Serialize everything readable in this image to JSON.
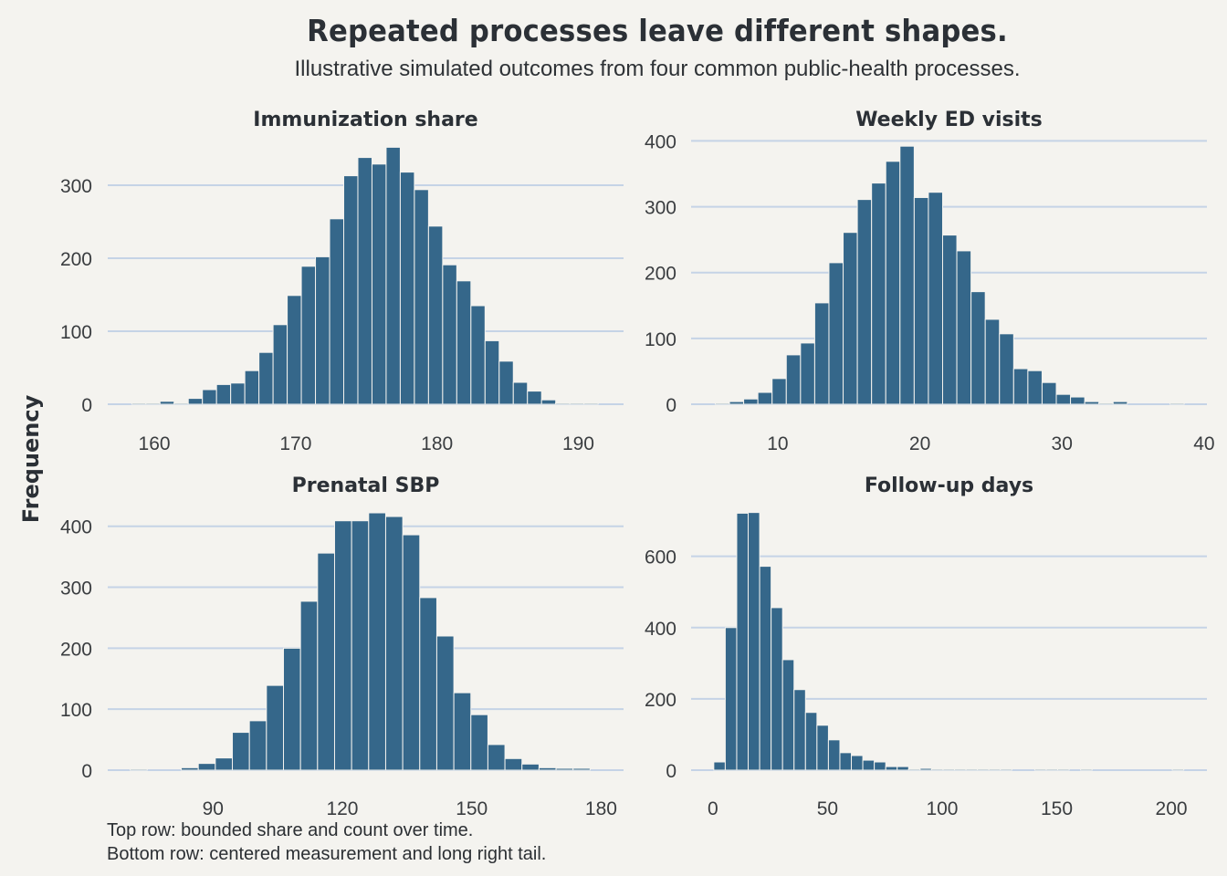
{
  "title": "Repeated processes leave different shapes.",
  "subtitle": "Illustrative simulated outcomes from four common public-health processes.",
  "ylabel": "Frequency",
  "notes": [
    "Top row: bounded share and count over time.",
    "Bottom row: centered measurement and long right tail."
  ],
  "colors": {
    "background": "#f4f3ef",
    "bar": "#35678a",
    "grid": "#c5d3e6",
    "text": "#2b3036"
  },
  "chart_data": [
    {
      "type": "bar",
      "title": "Immunization share",
      "xlabel": "",
      "ylabel": "Frequency",
      "bin_start": 158.4,
      "bin_width": 1.0,
      "values": [
        1,
        1,
        4,
        1,
        8,
        20,
        27,
        29,
        46,
        71,
        109,
        149,
        189,
        202,
        254,
        313,
        338,
        329,
        352,
        318,
        294,
        244,
        191,
        169,
        135,
        87,
        59,
        30,
        18,
        6,
        1,
        1,
        1
      ],
      "xlim": [
        156.7,
        193.2
      ],
      "ylim": [
        0,
        380
      ],
      "xticks": [
        160,
        170,
        180,
        190
      ],
      "yticks": [
        0,
        100,
        200,
        300
      ],
      "grid": "y"
    },
    {
      "type": "bar",
      "title": "Weekly ED visits",
      "xlabel": "",
      "ylabel": "Frequency",
      "bin_start": 5.6,
      "bin_width": 1.0,
      "values": [
        1,
        4,
        8,
        18,
        39,
        75,
        93,
        154,
        215,
        261,
        311,
        336,
        369,
        392,
        314,
        322,
        257,
        233,
        171,
        129,
        107,
        54,
        51,
        33,
        15,
        11,
        4,
        1,
        4,
        0,
        0,
        0,
        1
      ],
      "xlim": [
        3.9,
        40.2
      ],
      "ylim": [
        0,
        420
      ],
      "xticks": [
        10,
        20,
        30,
        40
      ],
      "yticks": [
        0,
        100,
        200,
        300,
        400
      ],
      "grid": "y"
    },
    {
      "type": "bar",
      "title": "Prenatal SBP",
      "xlabel": "",
      "ylabel": "Frequency",
      "bin_start": 70.8,
      "bin_width": 3.95,
      "values": [
        1,
        0,
        0,
        4,
        11,
        20,
        62,
        81,
        139,
        200,
        277,
        356,
        409,
        409,
        422,
        416,
        386,
        283,
        220,
        127,
        91,
        42,
        19,
        10,
        4,
        3,
        3
      ],
      "xlim": [
        65.6,
        185.2
      ],
      "ylim": [
        0,
        440
      ],
      "xticks": [
        90,
        120,
        150,
        180
      ],
      "yticks": [
        0,
        100,
        200,
        300,
        400
      ],
      "grid": "y"
    },
    {
      "type": "bar",
      "title": "Follow-up days",
      "xlabel": "",
      "ylabel": "Frequency",
      "bin_start": 0.4,
      "bin_width": 5.0,
      "values": [
        23,
        400,
        721,
        723,
        572,
        456,
        310,
        226,
        162,
        126,
        85,
        49,
        41,
        28,
        23,
        10,
        10,
        3,
        5,
        2,
        2,
        2,
        2,
        2,
        2,
        1,
        0,
        0,
        1,
        1,
        1,
        0,
        1,
        0,
        0,
        0,
        0,
        0,
        0,
        0,
        1
      ],
      "xlim": [
        -9.5,
        215.5
      ],
      "ylim": [
        0,
        740
      ],
      "xticks": [
        0,
        50,
        100,
        150,
        200
      ],
      "yticks": [
        0,
        200,
        400,
        600
      ],
      "grid": "y"
    }
  ]
}
